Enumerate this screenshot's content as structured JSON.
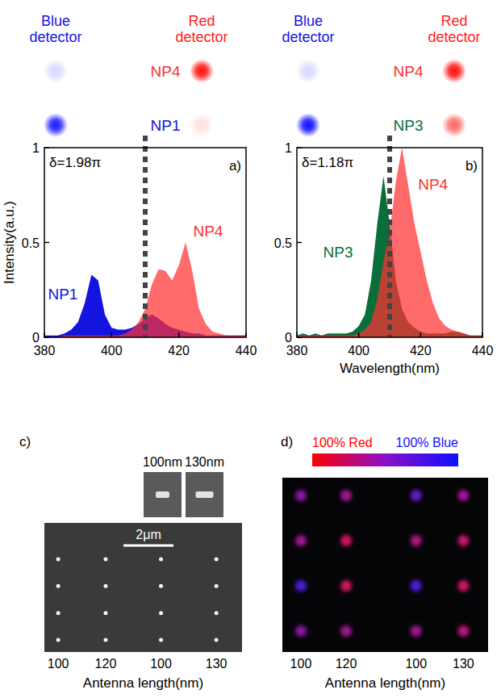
{
  "chart_data": [
    {
      "type": "area",
      "panel": "a)",
      "annotation": "δ=1.98π",
      "ylabel": "Intensity(a.u.)",
      "vline": 410,
      "x": [
        380,
        382,
        384,
        386,
        388,
        390,
        392,
        394,
        396,
        398,
        400,
        402,
        404,
        406,
        408,
        410,
        412,
        414,
        416,
        418,
        420,
        422,
        424,
        426,
        428,
        430,
        432,
        434,
        436,
        438,
        440
      ],
      "xlim": [
        380,
        440
      ],
      "xticks": [
        380,
        400,
        420,
        440
      ],
      "ylim": [
        0,
        1
      ],
      "yticks": [
        0,
        0.5,
        1
      ],
      "series": [
        {
          "name": "NP1",
          "color": "#1414e0",
          "values": [
            0.01,
            0.01,
            0.01,
            0.02,
            0.04,
            0.08,
            0.18,
            0.33,
            0.3,
            0.12,
            0.05,
            0.04,
            0.04,
            0.05,
            0.07,
            0.1,
            0.12,
            0.1,
            0.07,
            0.05,
            0.04,
            0.03,
            0.02,
            0.02,
            0.01,
            0.01,
            0.01,
            0.01,
            0.01,
            0.01,
            0.01
          ]
        },
        {
          "name": "NP4",
          "color": "#ff3030",
          "values": [
            0,
            0,
            0,
            0.01,
            0.01,
            0.01,
            0.01,
            0.01,
            0.01,
            0.01,
            0.01,
            0.01,
            0.02,
            0.04,
            0.08,
            0.15,
            0.28,
            0.36,
            0.35,
            0.3,
            0.38,
            0.5,
            0.35,
            0.15,
            0.07,
            0.03,
            0.02,
            0.01,
            0.01,
            0.01,
            0.01
          ]
        }
      ],
      "detector_labels": [
        "Blue detector",
        "Red detector"
      ],
      "spots": [
        {
          "name": "NP4",
          "color": "#ff3030",
          "blue": 0.15,
          "red": 0.95
        },
        {
          "name": "NP1",
          "color": "#1414e0",
          "blue": 0.9,
          "red": 0.12
        }
      ]
    },
    {
      "type": "area",
      "panel": "b)",
      "annotation": "δ=1.18π",
      "xlabel": "Wavelength(nm)",
      "vline": 410,
      "x": [
        380,
        382,
        384,
        386,
        388,
        390,
        392,
        394,
        396,
        398,
        400,
        402,
        404,
        406,
        408,
        410,
        412,
        414,
        416,
        418,
        420,
        422,
        424,
        426,
        428,
        430,
        432,
        434,
        436,
        438,
        440
      ],
      "xlim": [
        380,
        440
      ],
      "xticks": [
        380,
        400,
        420,
        440
      ],
      "ylim": [
        0,
        1
      ],
      "yticks": [
        0,
        0.5,
        1
      ],
      "series": [
        {
          "name": "NP3",
          "color": "#0a6e3a",
          "values": [
            0.01,
            0.02,
            0.01,
            0.02,
            0.01,
            0.02,
            0.02,
            0.02,
            0.02,
            0.03,
            0.06,
            0.12,
            0.3,
            0.6,
            0.85,
            0.6,
            0.3,
            0.15,
            0.08,
            0.05,
            0.03,
            0.02,
            0.02,
            0.02,
            0.02,
            0.03,
            0.03,
            0.02,
            0.01,
            0.01,
            0.01
          ]
        },
        {
          "name": "NP4",
          "color": "#ff3030",
          "values": [
            0.01,
            0.01,
            0.01,
            0.01,
            0.01,
            0.01,
            0.01,
            0.01,
            0.01,
            0.01,
            0.02,
            0.04,
            0.08,
            0.2,
            0.4,
            0.55,
            0.82,
            1.0,
            0.8,
            0.6,
            0.45,
            0.3,
            0.18,
            0.1,
            0.06,
            0.04,
            0.03,
            0.02,
            0.01,
            0.01,
            0.01
          ]
        }
      ],
      "detector_labels": [
        "Blue detector",
        "Red detector"
      ],
      "spots": [
        {
          "name": "NP4",
          "color": "#ff3030",
          "blue": 0.15,
          "red": 0.95
        },
        {
          "name": "NP3",
          "color": "#0a6e3a",
          "blue": 0.95,
          "red": 0.6
        }
      ]
    }
  ],
  "images": [
    {
      "type": "sem",
      "panel": "c)",
      "insets": [
        {
          "length": 100,
          "label": "100nm"
        },
        {
          "length": 130,
          "label": "130nm"
        }
      ],
      "scale_bar": "2μm",
      "categories": [
        100,
        120,
        100,
        130
      ],
      "xlabel": "Antenna length(nm)",
      "rows": 4
    },
    {
      "type": "optical",
      "panel": "d)",
      "colorbar_labels": [
        "100% Red",
        "100% Blue"
      ],
      "categories": [
        100,
        120,
        100,
        130
      ],
      "xlabel": "Antenna length(nm)",
      "red_fraction": [
        [
          0.5,
          0.6,
          0.3,
          0.6
        ],
        [
          0.6,
          0.85,
          0.7,
          0.8
        ],
        [
          0.2,
          0.85,
          0.2,
          0.85
        ],
        [
          0.5,
          0.6,
          0.6,
          0.75
        ]
      ]
    }
  ]
}
